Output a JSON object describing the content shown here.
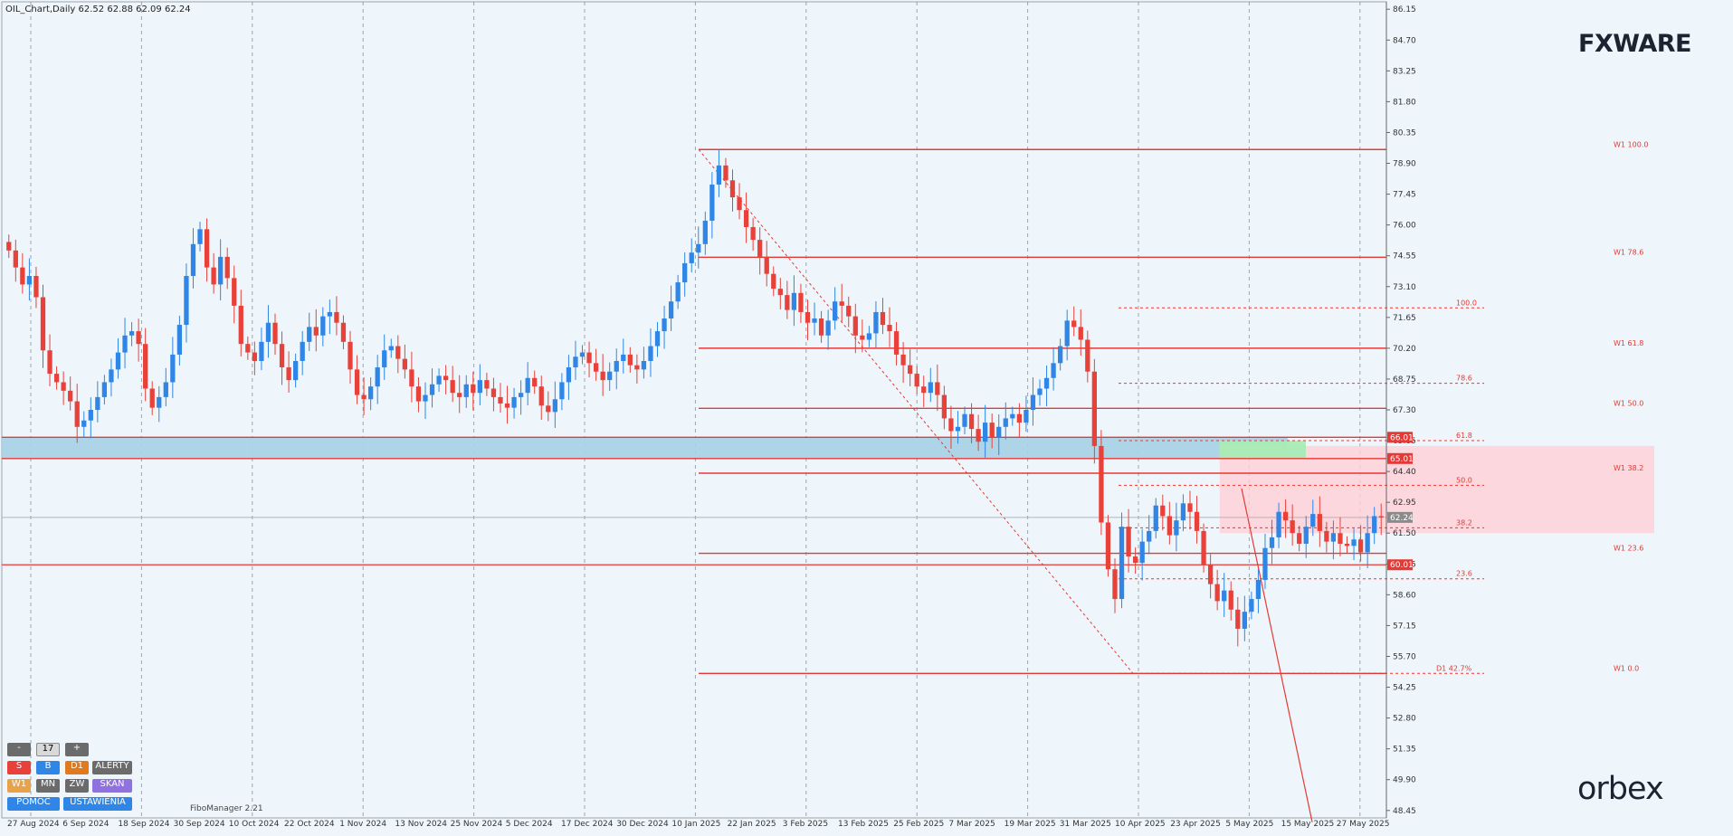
{
  "header": {
    "symbol_title": "OIL_Chart,Daily  62.52 62.88 62.09 62.24"
  },
  "watermark": {
    "fxware": "FXWARE",
    "orbex": "orbex",
    "filomanager": "FiboManager 2.21"
  },
  "colors": {
    "background": "#eef6fb",
    "bull": "#2f86e6",
    "bear": "#e8413a",
    "fib_line": "#e53935",
    "zone_blue": "#a9d3e6",
    "zone_pink": "#ffd0d6",
    "zone_green": "#a8ecb6",
    "grid": "#8a8f96",
    "axis_text": "#333333",
    "price_tag_red": "#e53935",
    "current_tag": "#8a8a8a"
  },
  "panel": {
    "minus": "-",
    "count": "17",
    "plus": "+",
    "row1": [
      "S",
      "B",
      "D1",
      "ALERTY"
    ],
    "row2": [
      "W1",
      "MN",
      "ZW",
      "SKAN"
    ],
    "row3": [
      "POMOC",
      "USTAWIENIA"
    ]
  },
  "chart_data": {
    "type": "candlestick",
    "title": "OIL_Chart,Daily  62.52 62.88 62.09 62.24",
    "x_tick_labels": [
      "27 Aug 2024",
      "6 Sep 2024",
      "18 Sep 2024",
      "30 Sep 2024",
      "10 Oct 2024",
      "22 Oct 2024",
      "1 Nov 2024",
      "13 Nov 2024",
      "25 Nov 2024",
      "5 Dec 2024",
      "17 Dec 2024",
      "30 Dec 2024",
      "10 Jan 2025",
      "22 Jan 2025",
      "3 Feb 2025",
      "13 Feb 2025",
      "25 Feb 2025",
      "7 Mar 2025",
      "19 Mar 2025",
      "31 Mar 2025",
      "10 Apr 2025",
      "23 Apr 2025",
      "5 May 2025",
      "15 May 2025",
      "27 May 2025"
    ],
    "y_tick_labels": [
      "86.15",
      "84.70",
      "83.25",
      "81.80",
      "80.35",
      "78.90",
      "77.45",
      "76.00",
      "74.55",
      "73.10",
      "71.65",
      "70.20",
      "68.75",
      "67.30",
      "65.85",
      "64.40",
      "62.95",
      "61.50",
      "60.05",
      "58.60",
      "57.15",
      "55.70",
      "54.25",
      "52.80",
      "51.35",
      "49.90",
      "48.45"
    ],
    "ylim": [
      48.1,
      86.5
    ],
    "current_price": "62.24",
    "price_tags": [
      "66.01",
      "65.01",
      "60.01"
    ],
    "closes": [
      74.8,
      74.0,
      73.2,
      73.6,
      72.6,
      70.1,
      69.0,
      68.6,
      68.2,
      67.7,
      66.5,
      66.8,
      67.3,
      67.9,
      68.6,
      69.2,
      70.0,
      70.8,
      71.0,
      70.4,
      68.3,
      67.4,
      67.9,
      68.6,
      69.9,
      71.3,
      73.6,
      75.1,
      75.8,
      74.0,
      73.2,
      74.5,
      73.5,
      72.2,
      70.4,
      70.0,
      69.6,
      70.5,
      71.4,
      70.4,
      69.3,
      68.7,
      69.6,
      70.5,
      71.2,
      70.8,
      71.7,
      71.9,
      71.4,
      70.5,
      69.2,
      68.0,
      67.8,
      68.4,
      69.3,
      70.1,
      70.3,
      69.7,
      69.2,
      68.4,
      67.7,
      68.0,
      68.5,
      68.9,
      68.7,
      68.1,
      67.9,
      68.5,
      68.1,
      68.7,
      68.3,
      67.9,
      67.6,
      67.4,
      67.9,
      68.1,
      68.8,
      68.4,
      67.5,
      67.2,
      67.8,
      68.6,
      69.3,
      69.8,
      70.0,
      69.5,
      69.1,
      68.7,
      69.1,
      69.6,
      69.9,
      69.4,
      69.2,
      69.6,
      70.3,
      71.0,
      71.6,
      72.4,
      73.3,
      74.2,
      74.7,
      75.1,
      76.2,
      77.9,
      78.8,
      78.1,
      77.3,
      76.7,
      75.9,
      75.3,
      74.5,
      73.7,
      73.0,
      72.7,
      72.0,
      72.8,
      71.9,
      71.4,
      71.6,
      70.8,
      71.5,
      72.4,
      72.2,
      71.7,
      70.8,
      70.6,
      70.9,
      71.9,
      71.3,
      71.0,
      69.9,
      69.4,
      69.0,
      68.4,
      68.1,
      68.6,
      68.0,
      66.9,
      66.3,
      66.5,
      67.1,
      66.4,
      65.8,
      66.7,
      66.0,
      66.5,
      66.9,
      67.1,
      66.7,
      67.3,
      68.0,
      68.3,
      68.8,
      69.5,
      70.3,
      71.5,
      71.2,
      70.6,
      69.1,
      65.6,
      62.0,
      59.8,
      58.4,
      61.8,
      60.4,
      60.1,
      61.1,
      61.6,
      62.8,
      62.3,
      61.4,
      62.1,
      62.9,
      62.5,
      61.6,
      60.0,
      59.1,
      58.3,
      58.8,
      57.9,
      57.0,
      57.8,
      58.4,
      59.3,
      60.8,
      61.3,
      62.5,
      62.1,
      61.5,
      61.0,
      61.8,
      62.4,
      61.6,
      61.1,
      61.5,
      61.0,
      60.9,
      61.2,
      60.6,
      61.5,
      62.3,
      62.24
    ],
    "fibonacci_levels_weekly": [
      {
        "label": "W1 100.0",
        "value": 79.55
      },
      {
        "label": "W1 78.6",
        "value": 74.48
      },
      {
        "label": "W1 61.8",
        "value": 70.2
      },
      {
        "label": "W1 50.0",
        "value": 67.37
      },
      {
        "label": "W1 38.2",
        "value": 64.32
      },
      {
        "label": "W1 23.6",
        "value": 60.55
      },
      {
        "label": "W1 0.0",
        "value": 54.9
      }
    ],
    "fibonacci_levels_daily": [
      {
        "label": "100.0",
        "value": 72.1
      },
      {
        "label": "78.6",
        "value": 68.55
      },
      {
        "label": "61.8",
        "value": 65.85
      },
      {
        "label": "50.0",
        "value": 63.75
      },
      {
        "label": "38.2",
        "value": 61.75
      },
      {
        "label": "23.6",
        "value": 59.35
      },
      {
        "label": "D1 42.7%",
        "value": 54.9
      }
    ],
    "horizontal_lines": [
      66.01,
      65.01,
      60.01
    ],
    "zones": [
      {
        "kind": "support",
        "from": 65.01,
        "to": 66.01
      },
      {
        "kind": "supply",
        "from": 61.5,
        "to": 65.6
      },
      {
        "kind": "demand-green",
        "from": 65.01,
        "to": 65.85
      }
    ],
    "grid": true
  }
}
